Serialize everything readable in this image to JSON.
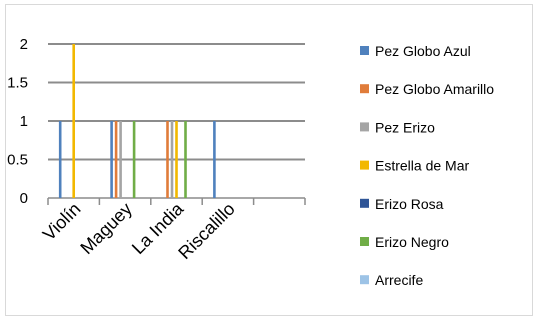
{
  "chart_data": {
    "type": "bar",
    "categories": [
      "Violín",
      "Maguey",
      "La India",
      "Riscalillo"
    ],
    "ylim": [
      0,
      2
    ],
    "yticks": [
      "0",
      "0.5",
      "1",
      "1.5",
      "2"
    ],
    "grid": true,
    "legend_position": "right",
    "series": [
      {
        "name": "Pez Globo Azul",
        "color": "#4f81bd",
        "values": [
          1,
          1,
          0,
          1
        ]
      },
      {
        "name": "Pez Globo Amarillo",
        "color": "#e07c3a",
        "values": [
          0,
          1,
          1,
          0
        ]
      },
      {
        "name": "Pez Erizo",
        "color": "#a5a5a5",
        "values": [
          0,
          1,
          1,
          0
        ]
      },
      {
        "name": "Estrella de Mar",
        "color": "#f2b800",
        "values": [
          2,
          0,
          1,
          0
        ]
      },
      {
        "name": "Erizo Rosa",
        "color": "#2f5597",
        "values": [
          0,
          0,
          0,
          0
        ]
      },
      {
        "name": "Erizo Negro",
        "color": "#70ad47",
        "values": [
          0,
          1,
          1,
          0
        ]
      },
      {
        "name": "Arrecife",
        "color": "#9dc3e6",
        "values": [
          0,
          0,
          0,
          0
        ]
      }
    ]
  }
}
